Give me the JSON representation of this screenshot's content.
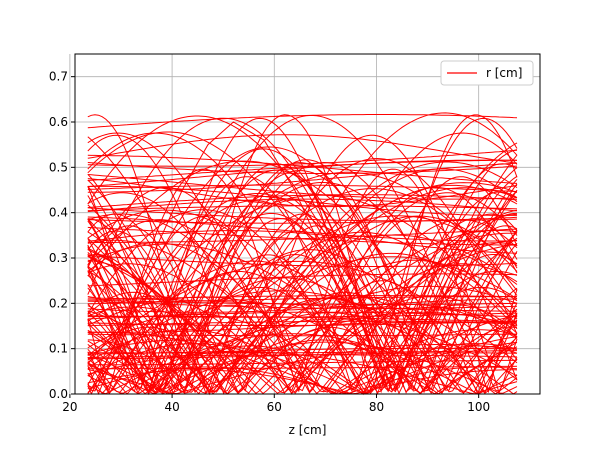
{
  "colors": {
    "series": "#ff0000",
    "grid": "#b0b0b0",
    "axes": "#000000",
    "background": "#ffffff"
  },
  "chart_data": {
    "type": "line",
    "title": "",
    "xlabel": "z [cm]",
    "ylabel": "",
    "xlim": [
      21,
      112
    ],
    "ylim": [
      0,
      0.75
    ],
    "x_ticks": [
      20,
      40,
      60,
      80,
      100
    ],
    "x_tick_labels": [
      "20",
      "40",
      "60",
      "80",
      "100"
    ],
    "y_ticks": [
      0.0,
      0.1,
      0.2,
      0.3,
      0.4,
      0.5,
      0.6,
      0.7
    ],
    "y_tick_labels": [
      "0.0",
      "0.1",
      "0.2",
      "0.3",
      "0.4",
      "0.5",
      "0.6",
      "0.7"
    ],
    "grid": true,
    "legend": {
      "position": "top-right",
      "entries": [
        "r [cm]"
      ]
    },
    "z_range": [
      23.5,
      107.5
    ],
    "trajectories_note": "many overlapping oscillating red curves for r vs z",
    "series": [
      {
        "name": "r [cm]",
        "color": "#ff0000",
        "x": [
          23.5,
          30,
          36,
          42,
          47,
          52,
          58,
          64,
          70,
          76,
          82,
          88,
          94,
          100,
          107.5
        ],
        "values": [
          0.02,
          0.15,
          0.3,
          0.45,
          0.55,
          0.6,
          0.56,
          0.45,
          0.3,
          0.15,
          0.02,
          0.12,
          0.28,
          0.42,
          0.5
        ]
      }
    ]
  }
}
